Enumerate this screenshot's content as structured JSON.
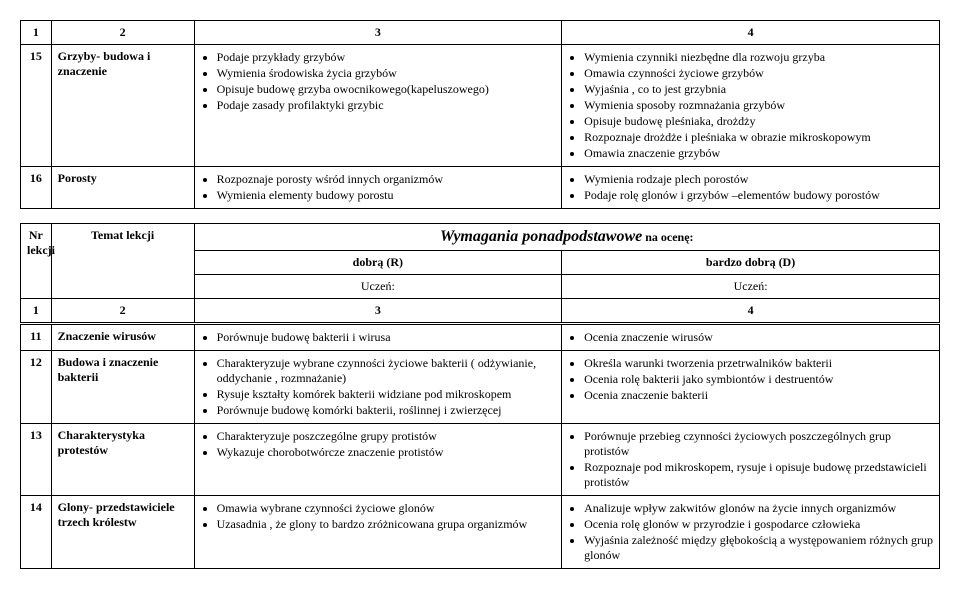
{
  "table1": {
    "head": {
      "c1": "1",
      "c2": "2",
      "c3": "3",
      "c4": "4"
    },
    "rows": [
      {
        "nr": "15",
        "topic": "Grzyby- budowa i znaczenie",
        "c3": [
          "Podaje przykłady grzybów",
          "Wymienia środowiska życia  grzybów",
          "Opisuje budowę grzyba owocnikowego(kapeluszowego)",
          "Podaje zasady profilaktyki  grzybic"
        ],
        "c4": [
          "Wymienia czynniki niezbędne dla rozwoju grzyba",
          "Omawia czynności życiowe grzybów",
          "Wyjaśnia , co to jest  grzybnia",
          "Wymienia sposoby rozmnażania grzybów",
          "Opisuje budowę pleśniaka, drożdży",
          "Rozpoznaje drożdże i pleśniaka w obrazie mikroskopowym",
          "Omawia znaczenie grzybów"
        ]
      },
      {
        "nr": "16",
        "topic": "Porosty",
        "c3": [
          "Rozpoznaje porosty wśród innych organizmów",
          "Wymienia elementy budowy porostu"
        ],
        "c4": [
          "Wymienia rodzaje plech porostów",
          "Podaje rolę glonów i grzybów –elementów budowy porostów"
        ]
      }
    ]
  },
  "table2": {
    "header": {
      "nr": "Nr lekcji",
      "topic": "Temat lekcji",
      "title": "Wymagania ponadpodstawowe",
      "title_suffix": " na ocenę:",
      "r": "dobrą (R)",
      "d": "bardzo dobrą (D)",
      "uczen": "Uczeń:"
    },
    "head2": {
      "c1": "1",
      "c2": "2",
      "c3": "3",
      "c4": "4"
    },
    "rows": [
      {
        "nr": "11",
        "topic": "Znaczenie wirusów",
        "c3": [
          "Porównuje budowę bakterii i wirusa"
        ],
        "c4": [
          "Ocenia znaczenie wirusów"
        ]
      },
      {
        "nr": "12",
        "topic": "Budowa i znaczenie bakterii",
        "c3": [
          "Charakteryzuje wybrane czynności życiowe bakterii ( odżywianie, oddychanie , rozmnażanie)",
          "Rysuje kształty komórek bakterii widziane pod mikroskopem",
          "Porównuje budowę komórki bakterii, roślinnej i zwierzęcej"
        ],
        "c4": [
          "Określa warunki tworzenia przetrwalników bakterii",
          "Ocenia rolę bakterii jako symbiontów i destruentów",
          "Ocenia znaczenie bakterii"
        ]
      },
      {
        "nr": "13",
        "topic": "Charakterystyka protestów",
        "c3": [
          "Charakteryzuje poszczególne grupy protistów",
          "Wykazuje chorobotwórcze znaczenie protistów"
        ],
        "c4": [
          "Porównuje przebieg czynności życiowych poszczególnych grup protistów",
          "Rozpoznaje pod mikroskopem, rysuje i opisuje budowę przedstawicieli protistów"
        ]
      },
      {
        "nr": "14",
        "topic": "Glony- przedstawiciele trzech królestw",
        "c3": [
          "Omawia wybrane czynności życiowe glonów",
          "Uzasadnia , że glony to bardzo zróżnicowana grupa organizmów"
        ],
        "c4": [
          "Analizuje wpływ zakwitów glonów  na życie innych organizmów",
          "Ocenia rolę glonów w przyrodzie i gospodarce człowieka",
          "Wyjaśnia zależność między głębokością a występowaniem różnych grup glonów"
        ]
      }
    ]
  }
}
